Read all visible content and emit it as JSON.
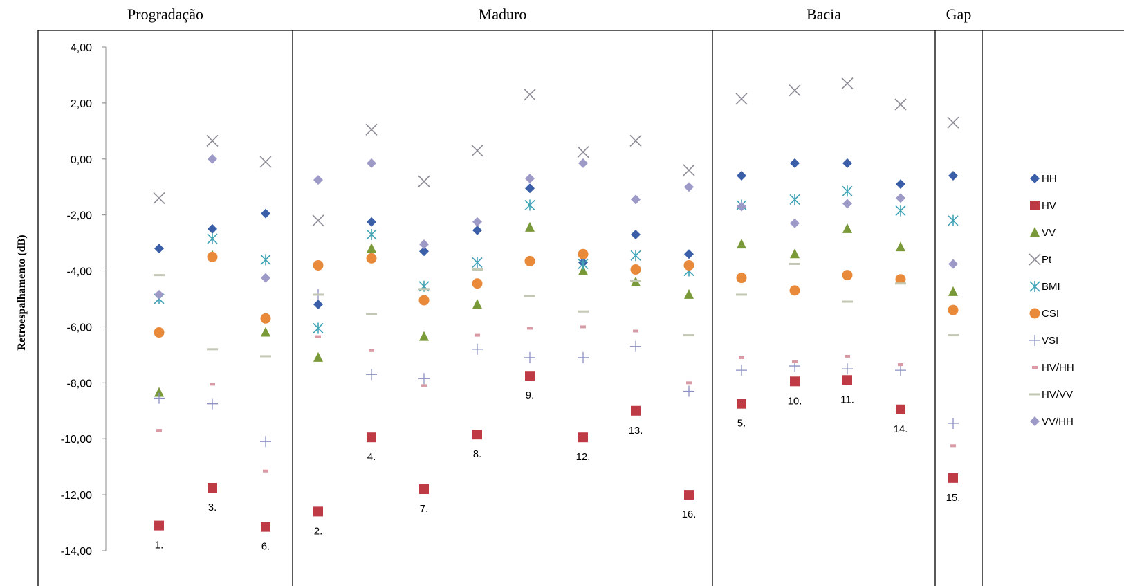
{
  "chart_data": {
    "type": "scatter",
    "ylabel": "Retroespalhamento (dB)",
    "ylim": [
      -14,
      4
    ],
    "yticks": [
      "4,00",
      "2,00",
      "0,00",
      "-2,00",
      "-4,00",
      "-6,00",
      "-8,00",
      "-10,00",
      "-12,00",
      "-14,00"
    ],
    "ytick_values": [
      4,
      2,
      0,
      -2,
      -4,
      -6,
      -8,
      -10,
      -12,
      -14
    ],
    "groups": [
      {
        "name": "Progradação",
        "columns": [
          "1.",
          "3.",
          "6."
        ]
      },
      {
        "name": "Maduro",
        "columns": [
          "2.",
          "4.",
          "7.",
          "8.",
          "9.",
          "12.",
          "13.",
          "16."
        ]
      },
      {
        "name": "Bacia",
        "columns": [
          "5.",
          "10.",
          "11.",
          "14."
        ]
      },
      {
        "name": "Gap",
        "columns": [
          "15."
        ]
      }
    ],
    "categories": [
      "1.",
      "3.",
      "6.",
      "2.",
      "4.",
      "7.",
      "8.",
      "9.",
      "12.",
      "13.",
      "16.",
      "5.",
      "10.",
      "11.",
      "14.",
      "15."
    ],
    "series": [
      {
        "name": "HH",
        "color": "#3a5fa8",
        "marker": "diamond",
        "values": [
          -3.2,
          -2.5,
          -1.95,
          -5.2,
          -2.25,
          -3.3,
          -2.55,
          -1.05,
          -3.7,
          -2.7,
          -3.4,
          -0.6,
          -0.15,
          -0.15,
          -0.9,
          -0.6
        ]
      },
      {
        "name": "HV",
        "color": "#be3a44",
        "marker": "square",
        "values": [
          -13.1,
          -11.75,
          -13.15,
          -12.6,
          -9.95,
          -11.8,
          -9.85,
          -7.75,
          -9.95,
          -9.0,
          -12.0,
          -8.75,
          -7.95,
          -7.9,
          -8.95,
          -11.4
        ]
      },
      {
        "name": "VV",
        "color": "#7a9a3a",
        "marker": "triangle",
        "values": [
          -8.35,
          -3.45,
          -6.2,
          -7.1,
          -3.2,
          -6.35,
          -5.2,
          -2.45,
          -4.0,
          -4.4,
          -4.85,
          -3.05,
          -3.4,
          -2.5,
          -3.15,
          -4.75
        ]
      },
      {
        "name": "Pt",
        "color": "#8c8c96",
        "marker": "x",
        "values": [
          -1.4,
          0.65,
          -0.1,
          -2.2,
          1.05,
          -0.8,
          0.3,
          2.3,
          0.25,
          0.65,
          -0.4,
          2.15,
          2.45,
          2.7,
          1.95,
          1.3
        ]
      },
      {
        "name": "BMI",
        "color": "#3fa3b6",
        "marker": "asterisk",
        "values": [
          -5.0,
          -2.85,
          -3.6,
          -6.05,
          -2.7,
          -4.55,
          -3.7,
          -1.65,
          -3.75,
          -3.45,
          -4.0,
          -1.65,
          -1.45,
          -1.15,
          -1.85,
          -2.2
        ]
      },
      {
        "name": "CSI",
        "color": "#e98a3b",
        "marker": "circle",
        "values": [
          -6.2,
          -3.5,
          -5.7,
          -3.8,
          -3.55,
          -5.05,
          -4.45,
          -3.65,
          -3.4,
          -3.95,
          -3.8,
          -4.25,
          -4.7,
          -4.15,
          -4.3,
          -5.4
        ]
      },
      {
        "name": "VSI",
        "color": "#8c8fc4",
        "marker": "plus",
        "values": [
          -8.55,
          -8.75,
          -10.1,
          -4.85,
          -7.7,
          -7.85,
          -6.8,
          -7.1,
          -7.1,
          -6.7,
          -8.3,
          -7.55,
          -7.4,
          -7.5,
          -7.55,
          -9.45
        ]
      },
      {
        "name": "HV/HH",
        "color": "#d99aa6",
        "marker": "dash",
        "values": [
          -9.7,
          -8.05,
          -11.15,
          -6.35,
          -6.85,
          -8.1,
          -6.3,
          -6.05,
          -6.0,
          -6.15,
          -8.0,
          -7.1,
          -7.25,
          -7.05,
          -7.35,
          -10.25
        ]
      },
      {
        "name": "HV/VV",
        "color": "#c3c8b4",
        "marker": "line",
        "values": [
          -4.15,
          -6.8,
          -7.05,
          -4.85,
          -5.55,
          -4.65,
          -3.95,
          -4.9,
          -5.45,
          -4.35,
          -6.3,
          -4.85,
          -3.75,
          -5.1,
          -4.45,
          -6.3
        ]
      },
      {
        "name": "VV/HH",
        "color": "#9d9ac8",
        "marker": "diamond",
        "values": [
          -4.85,
          0.0,
          -4.25,
          -0.75,
          -0.15,
          -3.05,
          -2.25,
          -0.7,
          -0.15,
          -1.45,
          -1.0,
          -1.7,
          -2.3,
          -1.6,
          -1.4,
          -3.75
        ]
      }
    ],
    "point_labels_series": "HV",
    "legend_position": "right",
    "grid": false
  }
}
